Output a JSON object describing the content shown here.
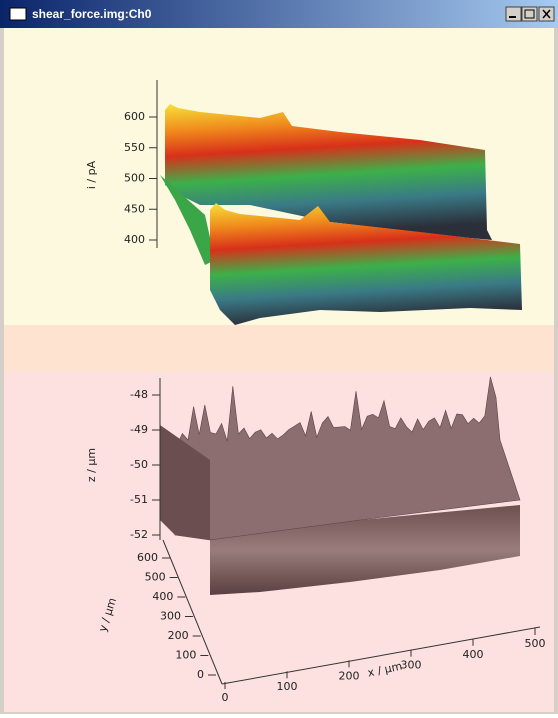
{
  "window": {
    "title": "shear_force.img:Ch0"
  },
  "plots": [
    {
      "z_axis": {
        "label": "i / pA",
        "ticks": [
          600,
          550,
          500,
          450,
          400
        ]
      }
    },
    {
      "z_axis": {
        "label": "z / µm",
        "ticks": [
          -48,
          -49,
          -50,
          -51,
          -52
        ]
      },
      "y_axis": {
        "label": "y / µm",
        "ticks": [
          600,
          500,
          400,
          300,
          200,
          100,
          0
        ]
      },
      "x_axis": {
        "label": "x / µm",
        "ticks": [
          0,
          100,
          200,
          300,
          400,
          500
        ]
      }
    }
  ]
}
